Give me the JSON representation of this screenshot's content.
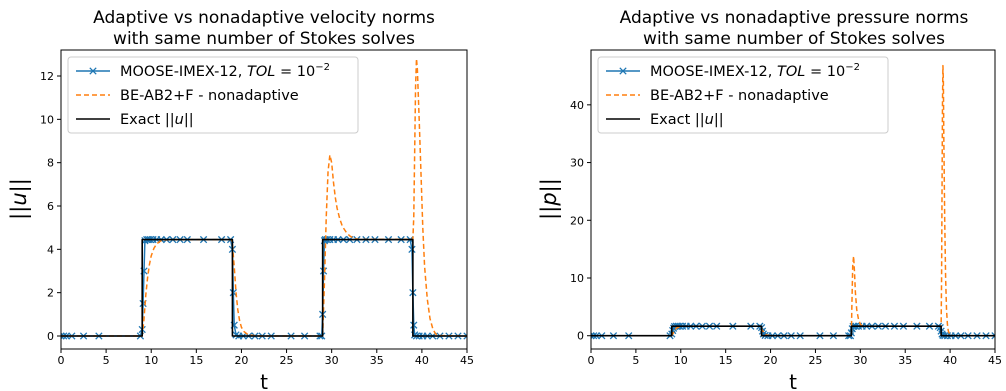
{
  "chart_data": [
    {
      "type": "line",
      "title": "Adaptive vs nonadaptive velocity norms\nwith same number of Stokes solves",
      "xlabel": "t",
      "ylabel": "||u||",
      "xlim": [
        0,
        45
      ],
      "ylim": [
        -0.6,
        13.2
      ],
      "xticks": [
        0,
        5,
        10,
        15,
        20,
        25,
        30,
        35,
        40,
        45
      ],
      "yticks": [
        0,
        2,
        4,
        6,
        8,
        10,
        12
      ],
      "grid": false,
      "legend": "top-left",
      "series": [
        {
          "name": "MOOSE-IMEX-12, TOL = 10^-2",
          "color": "#1f77b4",
          "style": "solid-x",
          "x": [
            0,
            0.3,
            0.6,
            1.2,
            2.5,
            4.2,
            8.8,
            9.0,
            9.1,
            9.2,
            9.3,
            9.5,
            9.7,
            9.9,
            10.2,
            10.6,
            11.1,
            11.7,
            12.4,
            13.2,
            14.0,
            15.8,
            17.8,
            18.8,
            19.0,
            19.1,
            19.2,
            19.4,
            19.7,
            20.2,
            20.8,
            21.5,
            22.3,
            23.3,
            25.5,
            27.0,
            28.7,
            28.9,
            29.0,
            29.1,
            29.2,
            29.3,
            29.5,
            29.8,
            30.2,
            30.7,
            31.3,
            32.0,
            32.8,
            33.8,
            34.8,
            36.3,
            37.7,
            38.7,
            38.9,
            39.0,
            39.1,
            39.2,
            39.4,
            39.7,
            40.1,
            40.6,
            41.2,
            42.0,
            43.0,
            44.0,
            45.0
          ],
          "y": [
            0,
            0,
            0,
            0,
            0,
            0,
            0,
            0.3,
            1.5,
            3.0,
            4.4,
            4.45,
            4.45,
            4.45,
            4.45,
            4.45,
            4.45,
            4.45,
            4.45,
            4.45,
            4.45,
            4.45,
            4.45,
            4.45,
            4.0,
            2.0,
            0.5,
            0.05,
            0,
            0,
            0,
            0,
            0,
            0,
            0,
            0,
            0,
            0,
            1.0,
            3.0,
            4.4,
            4.45,
            4.45,
            4.45,
            4.45,
            4.45,
            4.45,
            4.45,
            4.45,
            4.45,
            4.45,
            4.45,
            4.45,
            4.45,
            4.0,
            2.0,
            0.5,
            0.05,
            0,
            0,
            0,
            0,
            0,
            0,
            0,
            0,
            0
          ]
        },
        {
          "name": "BE-AB2+F - nonadaptive",
          "color": "#ff7f0e",
          "style": "dashed",
          "x": [
            0,
            9.0,
            9.2,
            9.4,
            9.6,
            9.8,
            10.0,
            10.3,
            10.6,
            11.0,
            11.5,
            12.0,
            12.5,
            13.0,
            18.9,
            19.0,
            19.2,
            19.4,
            19.6,
            19.8,
            20.0,
            20.3,
            20.6,
            21.0,
            21.5,
            22.0,
            29.0,
            29.2,
            29.4,
            29.6,
            29.8,
            30.0,
            30.2,
            30.4,
            30.6,
            30.9,
            31.2,
            31.6,
            32.0,
            32.5,
            33.0,
            39.0,
            39.1,
            39.2,
            39.3,
            39.4,
            39.5,
            39.7,
            39.9,
            40.1,
            40.3,
            40.6,
            40.9,
            41.2,
            41.5,
            42.0,
            45.0
          ],
          "y": [
            0,
            0,
            0.8,
            1.9,
            2.7,
            3.3,
            3.7,
            4.05,
            4.25,
            4.38,
            4.43,
            4.45,
            4.45,
            4.45,
            4.45,
            4.2,
            3.2,
            2.0,
            1.2,
            0.7,
            0.4,
            0.2,
            0.1,
            0.04,
            0.01,
            0,
            0,
            2.5,
            5.5,
            7.6,
            8.35,
            8.0,
            7.1,
            6.4,
            5.9,
            5.4,
            5.05,
            4.8,
            4.62,
            4.5,
            4.46,
            4.46,
            5.5,
            8.5,
            11.5,
            12.8,
            12.3,
            10.0,
            7.5,
            5.0,
            3.2,
            1.7,
            0.8,
            0.35,
            0.1,
            0.02,
            0
          ]
        },
        {
          "name": "Exact ||u||",
          "color": "#000000",
          "style": "solid",
          "x": [
            0,
            9,
            9,
            19,
            19,
            29,
            29,
            39,
            39,
            45
          ],
          "y": [
            0,
            0,
            4.45,
            4.45,
            0,
            0,
            4.45,
            4.45,
            0,
            0
          ]
        }
      ]
    },
    {
      "type": "line",
      "title": "Adaptive vs nonadaptive pressure norms\nwith same number of Stokes solves",
      "xlabel": "t",
      "ylabel": "||p||",
      "xlim": [
        0,
        45
      ],
      "ylim": [
        -2.3,
        49.5
      ],
      "xticks": [
        0,
        5,
        10,
        15,
        20,
        25,
        30,
        35,
        40,
        45
      ],
      "yticks": [
        0,
        10,
        20,
        30,
        40
      ],
      "grid": false,
      "legend": "top-left",
      "series": [
        {
          "name": "MOOSE-IMEX-12, TOL = 10^-2",
          "color": "#1f77b4",
          "style": "solid-x",
          "x": [
            0,
            0.3,
            0.6,
            1.2,
            2.5,
            4.2,
            8.8,
            9.0,
            9.1,
            9.2,
            9.3,
            9.5,
            9.7,
            9.9,
            10.2,
            10.6,
            11.1,
            11.7,
            12.4,
            13.2,
            14.0,
            15.8,
            17.8,
            18.8,
            19.0,
            19.1,
            19.2,
            19.4,
            19.7,
            20.2,
            20.8,
            21.5,
            22.3,
            23.3,
            25.5,
            27.0,
            28.7,
            28.9,
            29.0,
            29.1,
            29.2,
            29.3,
            29.5,
            29.8,
            30.2,
            30.7,
            31.3,
            32.0,
            32.8,
            33.8,
            34.8,
            36.3,
            37.7,
            38.7,
            38.9,
            39.0,
            39.1,
            39.2,
            39.4,
            39.7,
            40.1,
            40.6,
            41.2,
            42.0,
            43.0,
            44.0,
            45.0
          ],
          "y": [
            0,
            0,
            0,
            0,
            0,
            0,
            0,
            0.3,
            0.9,
            1.3,
            1.6,
            1.65,
            1.65,
            1.65,
            1.65,
            1.65,
            1.65,
            1.65,
            1.65,
            1.65,
            1.65,
            1.65,
            1.65,
            1.65,
            1.4,
            0.8,
            0.3,
            0.05,
            0,
            0,
            0,
            0,
            0,
            0,
            0,
            0,
            0,
            0,
            0.5,
            1.2,
            1.6,
            1.65,
            1.65,
            1.65,
            1.65,
            1.65,
            1.65,
            1.65,
            1.65,
            1.65,
            1.65,
            1.65,
            1.65,
            1.65,
            1.4,
            0.8,
            0.3,
            0.05,
            0,
            0,
            0,
            0,
            0,
            0,
            0,
            0,
            0
          ]
        },
        {
          "name": "BE-AB2+F - nonadaptive",
          "color": "#ff7f0e",
          "style": "dashed",
          "x": [
            0,
            9.0,
            9.2,
            9.5,
            10.0,
            18.9,
            19.0,
            19.3,
            19.6,
            20.0,
            29.0,
            29.05,
            29.15,
            29.25,
            29.35,
            29.45,
            29.6,
            29.8,
            30.0,
            30.2,
            30.5,
            39.0,
            39.05,
            39.1,
            39.15,
            39.2,
            39.25,
            39.3,
            39.4,
            39.5,
            39.6,
            39.7,
            39.8,
            40.0,
            40.3,
            45.0
          ],
          "y": [
            0,
            0,
            0.6,
            1.3,
            1.65,
            1.65,
            1.2,
            0.4,
            0.1,
            0,
            0,
            4.5,
            12.0,
            13.8,
            11.0,
            7.5,
            4.5,
            2.8,
            2.0,
            1.7,
            1.65,
            1.65,
            10.0,
            25.0,
            40.0,
            46.8,
            44.0,
            34.0,
            20.0,
            10.0,
            4.5,
            2.0,
            0.8,
            0.15,
            0,
            0
          ]
        },
        {
          "name": "Exact ||u||",
          "color": "#000000",
          "style": "solid",
          "x": [
            0,
            9,
            9,
            19,
            19,
            29,
            29,
            39,
            39,
            45
          ],
          "y": [
            0,
            0,
            1.65,
            1.65,
            0,
            0,
            1.65,
            1.65,
            0,
            0
          ]
        }
      ]
    }
  ]
}
